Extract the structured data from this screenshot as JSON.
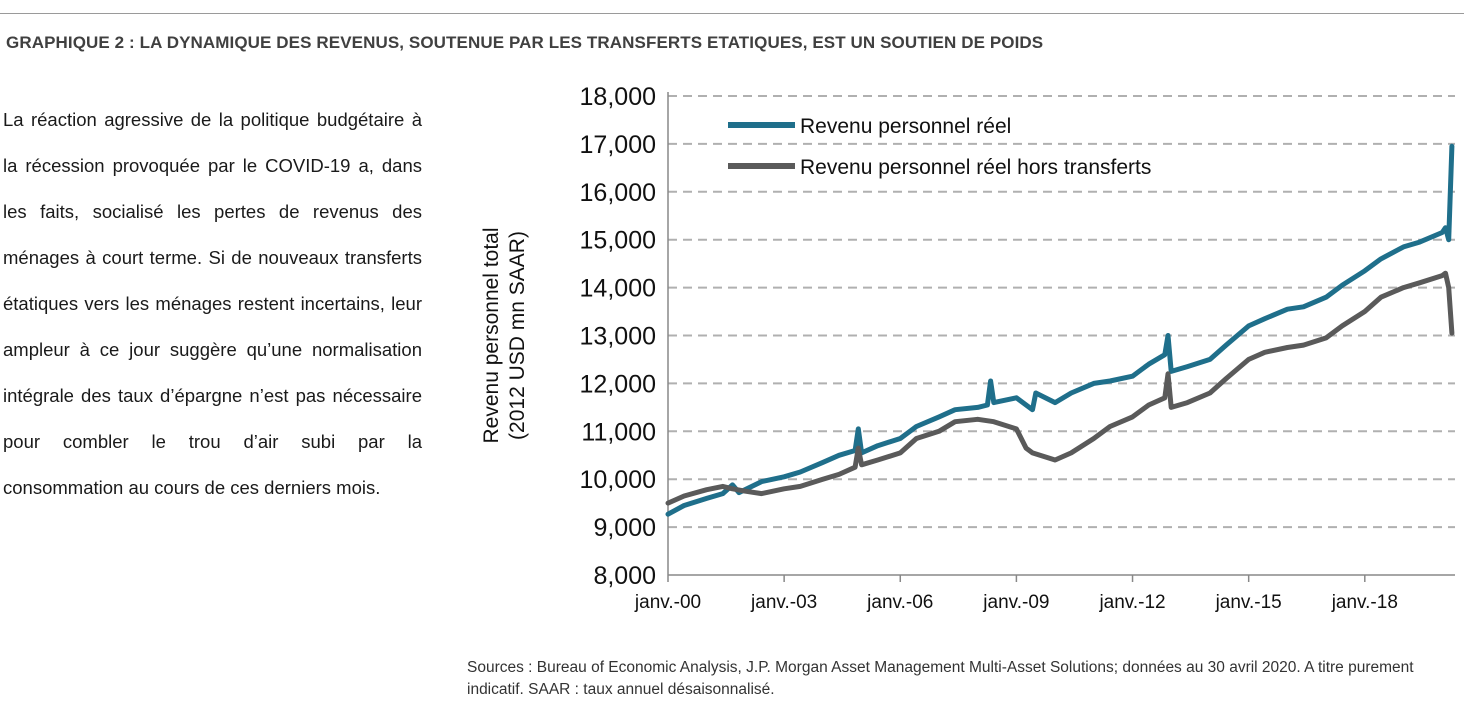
{
  "heading": "GRAPHIQUE 2 : LA DYNAMIQUE DES REVENUS, SOUTENUE PAR LES TRANSFERTS ETATIQUES, EST UN SOUTIEN DE POIDS",
  "body_text": "La réaction agressive de la politique budgétaire à la récession provoquée par le COVID-19 a, dans les faits, socialisé les pertes de revenus des ménages à court terme. Si de nouveaux transferts étatiques vers les ménages restent incertains, leur ampleur à ce jour suggère qu’une normalisation intégrale des taux d’épargne n’est pas nécessaire pour combler le trou d’air subi par la consommation au cours de ces derniers mois.",
  "sources": "Sources : Bureau of Economic Analysis, J.P. Morgan Asset Management Multi-Asset Solutions; données au 30 avril 2020. A titre purement indicatif. SAAR : taux annuel désaisonnalisé.",
  "chart_data": {
    "type": "line",
    "title": "",
    "ylabel_line1": "Revenu personnel total",
    "ylabel_line2": "(2012 USD mn SAAR)",
    "xlabel": "",
    "ylim": [
      8000,
      18000
    ],
    "xlim": [
      2000.0,
      2020.33
    ],
    "yticks": [
      8000,
      9000,
      10000,
      11000,
      12000,
      13000,
      14000,
      15000,
      16000,
      17000,
      18000
    ],
    "ytick_labels": [
      "8,000",
      "9,000",
      "10,000",
      "11,000",
      "12,000",
      "13,000",
      "14,000",
      "15,000",
      "16,000",
      "17,000",
      "18,000"
    ],
    "xticks": [
      2000,
      2003,
      2006,
      2009,
      2012,
      2015,
      2018
    ],
    "xtick_labels": [
      "janv.-00",
      "janv.-03",
      "janv.-06",
      "janv.-09",
      "janv.-12",
      "janv.-15",
      "janv.-18"
    ],
    "grid": "horizontal dashed",
    "legend_position": "top-left",
    "series": [
      {
        "name": "Revenu personnel réel",
        "color": "#1f6f8b",
        "points": [
          [
            "2000-01",
            9270
          ],
          [
            "2000-06",
            9450
          ],
          [
            "2001-01",
            9600
          ],
          [
            "2001-06",
            9700
          ],
          [
            "2001-09",
            9880
          ],
          [
            "2001-11",
            9720
          ],
          [
            "2002-06",
            9950
          ],
          [
            "2003-01",
            10050
          ],
          [
            "2003-06",
            10150
          ],
          [
            "2004-01",
            10350
          ],
          [
            "2004-06",
            10500
          ],
          [
            "2004-11",
            10600
          ],
          [
            "2004-12",
            11050
          ],
          [
            "2005-01",
            10550
          ],
          [
            "2005-06",
            10700
          ],
          [
            "2006-01",
            10850
          ],
          [
            "2006-06",
            11100
          ],
          [
            "2007-01",
            11300
          ],
          [
            "2007-06",
            11450
          ],
          [
            "2008-01",
            11500
          ],
          [
            "2008-04",
            11550
          ],
          [
            "2008-05",
            12050
          ],
          [
            "2008-06",
            11600
          ],
          [
            "2009-01",
            11700
          ],
          [
            "2009-06",
            11450
          ],
          [
            "2009-07",
            11800
          ],
          [
            "2010-01",
            11600
          ],
          [
            "2010-06",
            11800
          ],
          [
            "2011-01",
            12000
          ],
          [
            "2011-06",
            12050
          ],
          [
            "2012-01",
            12150
          ],
          [
            "2012-06",
            12400
          ],
          [
            "2012-11",
            12600
          ],
          [
            "2012-12",
            13000
          ],
          [
            "2013-01",
            12250
          ],
          [
            "2013-06",
            12350
          ],
          [
            "2014-01",
            12500
          ],
          [
            "2014-06",
            12800
          ],
          [
            "2015-01",
            13200
          ],
          [
            "2015-06",
            13350
          ],
          [
            "2016-01",
            13550
          ],
          [
            "2016-06",
            13600
          ],
          [
            "2017-01",
            13800
          ],
          [
            "2017-06",
            14050
          ],
          [
            "2018-01",
            14350
          ],
          [
            "2018-06",
            14600
          ],
          [
            "2019-01",
            14850
          ],
          [
            "2019-06",
            14950
          ],
          [
            "2020-01",
            15150
          ],
          [
            "2020-02",
            15250
          ],
          [
            "2020-03",
            15000
          ],
          [
            "2020-04",
            16950
          ]
        ]
      },
      {
        "name": "Revenu personnel réel hors transferts",
        "color": "#5a5a5a",
        "points": [
          [
            "2000-01",
            9500
          ],
          [
            "2000-06",
            9650
          ],
          [
            "2001-01",
            9780
          ],
          [
            "2001-06",
            9850
          ],
          [
            "2001-09",
            9800
          ],
          [
            "2002-01",
            9750
          ],
          [
            "2002-06",
            9700
          ],
          [
            "2003-01",
            9800
          ],
          [
            "2003-06",
            9850
          ],
          [
            "2004-01",
            10000
          ],
          [
            "2004-06",
            10100
          ],
          [
            "2004-11",
            10250
          ],
          [
            "2004-12",
            10650
          ],
          [
            "2005-01",
            10300
          ],
          [
            "2005-06",
            10400
          ],
          [
            "2006-01",
            10550
          ],
          [
            "2006-06",
            10850
          ],
          [
            "2007-01",
            11000
          ],
          [
            "2007-06",
            11200
          ],
          [
            "2008-01",
            11250
          ],
          [
            "2008-06",
            11200
          ],
          [
            "2009-01",
            11050
          ],
          [
            "2009-04",
            10650
          ],
          [
            "2009-06",
            10550
          ],
          [
            "2010-01",
            10400
          ],
          [
            "2010-06",
            10550
          ],
          [
            "2011-01",
            10850
          ],
          [
            "2011-06",
            11100
          ],
          [
            "2012-01",
            11300
          ],
          [
            "2012-06",
            11550
          ],
          [
            "2012-11",
            11700
          ],
          [
            "2012-12",
            12200
          ],
          [
            "2013-01",
            11500
          ],
          [
            "2013-06",
            11600
          ],
          [
            "2014-01",
            11800
          ],
          [
            "2014-06",
            12100
          ],
          [
            "2015-01",
            12500
          ],
          [
            "2015-06",
            12650
          ],
          [
            "2016-01",
            12750
          ],
          [
            "2016-06",
            12800
          ],
          [
            "2017-01",
            12950
          ],
          [
            "2017-06",
            13200
          ],
          [
            "2018-01",
            13500
          ],
          [
            "2018-06",
            13800
          ],
          [
            "2019-01",
            14000
          ],
          [
            "2019-06",
            14100
          ],
          [
            "2020-01",
            14250
          ],
          [
            "2020-02",
            14300
          ],
          [
            "2020-03",
            14000
          ],
          [
            "2020-04",
            13050
          ]
        ]
      }
    ]
  }
}
